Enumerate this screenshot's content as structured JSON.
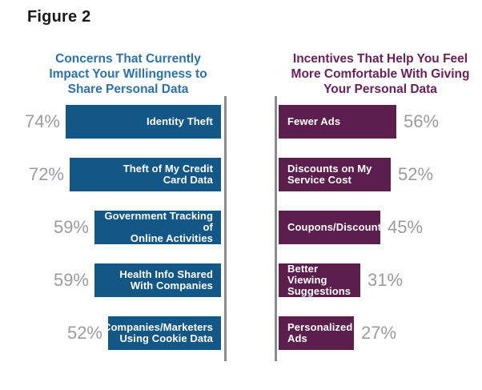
{
  "figure_label": "Figure 2",
  "colors": {
    "background": "#FFFFFF",
    "left_bar": "#135787",
    "left_title": "#2B72AE",
    "right_bar": "#5B1E4D",
    "right_title": "#6B2158",
    "percent_text": "#9A9CA0",
    "axis_line": "#8A8C8F",
    "bar_label_text": "#FFFFFF",
    "figure_label_text": "#1A1A1A"
  },
  "chart_data": [
    {
      "type": "bar",
      "orientation": "horizontal",
      "direction": "bars-grow-leftward-from-axis",
      "title": "Concerns That Currently\nImpact Your Willingness to\nShare Personal Data",
      "xlabel": "",
      "ylabel": "",
      "value_suffix": "%",
      "xlim": [
        0,
        100
      ],
      "grid": false,
      "legend": false,
      "categories": [
        "Identity Theft",
        "Theft of My Credit Card Data",
        "Government Tracking of Online Activities",
        "Health Info Shared With Companies",
        "Companies/Marketers Using Cookie Data"
      ],
      "values": [
        74,
        72,
        59,
        59,
        52
      ],
      "items": [
        {
          "label": "Identity Theft",
          "label_lines": "Identity Theft",
          "value": 74,
          "value_label": "74%"
        },
        {
          "label": "Theft of My Credit Card Data",
          "label_lines": "Theft of My Credit\nCard Data",
          "value": 72,
          "value_label": "72%"
        },
        {
          "label": "Government Tracking of Online Activities",
          "label_lines": "Government Tracking of\nOnline Activities",
          "value": 59,
          "value_label": "59%"
        },
        {
          "label": "Health Info Shared With Companies",
          "label_lines": "Health Info Shared\nWith Companies",
          "value": 59,
          "value_label": "59%"
        },
        {
          "label": "Companies/Marketers Using Cookie Data",
          "label_lines": "Companies/Marketers\nUsing Cookie Data",
          "value": 52,
          "value_label": "52%"
        }
      ]
    },
    {
      "type": "bar",
      "orientation": "horizontal",
      "direction": "bars-grow-rightward-from-axis",
      "title": "Incentives That Help You Feel\nMore Comfortable With Giving\nYour Personal Data",
      "xlabel": "",
      "ylabel": "",
      "value_suffix": "%",
      "xlim": [
        0,
        100
      ],
      "grid": false,
      "legend": false,
      "categories": [
        "Fewer Ads",
        "Discounts on My Service Cost",
        "Coupons/Discounts",
        "Better Viewing Suggestions",
        "Personalized Ads"
      ],
      "values": [
        56,
        52,
        45,
        31,
        27
      ],
      "items": [
        {
          "label": "Fewer Ads",
          "label_lines": "Fewer Ads",
          "value": 56,
          "value_label": "56%"
        },
        {
          "label": "Discounts on My Service Cost",
          "label_lines": "Discounts on My\nService Cost",
          "value": 52,
          "value_label": "52%"
        },
        {
          "label": "Coupons/Discounts",
          "label_lines": "Coupons/Discounts",
          "value": 45,
          "value_label": "45%"
        },
        {
          "label": "Better Viewing Suggestions",
          "label_lines": "Better Viewing\nSuggestions",
          "value": 31,
          "value_label": "31%"
        },
        {
          "label": "Personalized Ads",
          "label_lines": "Personalized\nAds",
          "value": 27,
          "value_label": "27%"
        }
      ]
    }
  ]
}
